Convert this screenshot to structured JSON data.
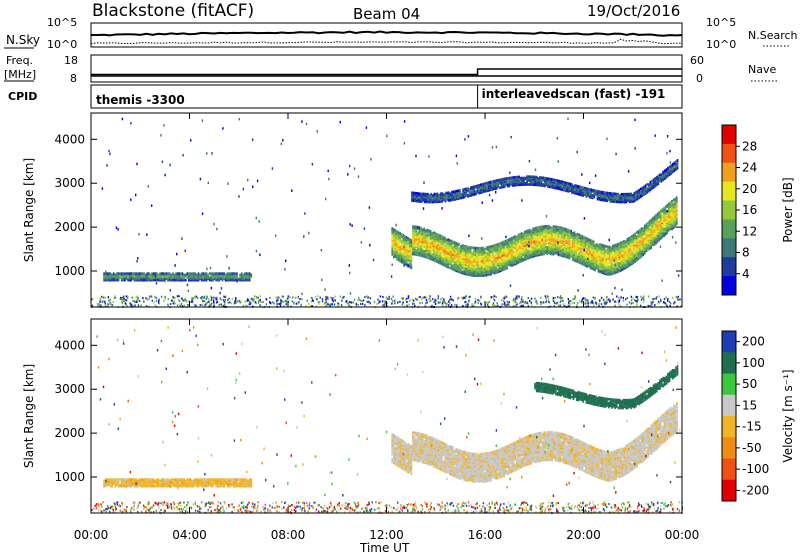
{
  "header": {
    "site": "Blackstone (fitACF)",
    "beam": "Beam 04",
    "date": "19/Oct/2016"
  },
  "summary_panel": {
    "nsky_label": "N.Sky",
    "nsearch_label": "N.Search",
    "freq_label": "Freq.",
    "freq_unit": "[MHz]",
    "nave_label": "Nave",
    "cpid_label": "CPID",
    "nsky_ticks": [
      "10^5",
      "10^0"
    ],
    "nsearch_ticks": [
      "10^5",
      "10^0"
    ],
    "freq_ticks": [
      "18",
      "8"
    ],
    "nave_ticks": [
      "60",
      "0"
    ],
    "cpid_segments": [
      {
        "label": "themis -3300",
        "start_h": 0,
        "end_h": 15.7
      },
      {
        "label": "interleavedscan (fast) -191",
        "start_h": 15.7,
        "end_h": 24
      }
    ],
    "freq_mhz": [
      {
        "start_h": 0,
        "end_h": 15.7,
        "value": 10.0
      },
      {
        "start_h": 15.7,
        "end_h": 24,
        "value": 10.0
      }
    ],
    "nave": [
      {
        "start_h": 0,
        "end_h": 15.7,
        "value": 15
      },
      {
        "start_h": 15.7,
        "end_h": 24,
        "value": 30
      }
    ]
  },
  "time_axis": {
    "label": "Time UT",
    "ticks": [
      "00:00",
      "04:00",
      "08:00",
      "12:00",
      "16:00",
      "20:00",
      "00:00"
    ],
    "tick_hours": [
      0,
      4,
      8,
      12,
      16,
      20,
      24
    ]
  },
  "chart_data": [
    {
      "type": "heatmap",
      "name": "power",
      "ylabel": "Slant Range [km]",
      "yticks": [
        "1000",
        "2000",
        "3000",
        "4000"
      ],
      "ytick_values": [
        1000,
        2000,
        3000,
        4000
      ],
      "ylim": [
        180,
        4600
      ],
      "xlim_hours": [
        0,
        24
      ],
      "colorbar": {
        "label": "Power [dB]",
        "ticks": [
          "4",
          "8",
          "12",
          "16",
          "20",
          "24",
          "28"
        ],
        "colors": [
          "#0000e0",
          "#1e3ca0",
          "#3c7a78",
          "#5aa05a",
          "#96c83c",
          "#e6e61e",
          "#f0a01e",
          "#f05014",
          "#e00000"
        ]
      },
      "features": [
        {
          "desc_id": "early_band",
          "start_h": 0.5,
          "end_h": 6.5,
          "range_km": [
            820,
            1000
          ],
          "level": 3
        },
        {
          "desc_id": "main_band_A",
          "start_h": 12.2,
          "end_h": 15.7,
          "range_km": [
            1050,
            1700
          ],
          "level": 6
        },
        {
          "desc_id": "main_band_B",
          "start_h": 15.7,
          "end_h": 23.8,
          "range_km": [
            1200,
            2100
          ],
          "level": 6
        },
        {
          "desc_id": "upper_band",
          "start_h": 13.0,
          "end_h": 23.8,
          "range_km": [
            2700,
            3300
          ],
          "level": 2
        }
      ]
    },
    {
      "type": "heatmap",
      "name": "velocity",
      "ylabel": "Slant Range [km]",
      "yticks": [
        "1000",
        "2000",
        "3000",
        "4000"
      ],
      "ytick_values": [
        1000,
        2000,
        3000,
        4000
      ],
      "ylim": [
        180,
        4600
      ],
      "xlim_hours": [
        0,
        24
      ],
      "colorbar": {
        "label": "Velocity [m s⁻¹]",
        "ticks": [
          "200",
          "100",
          "50",
          "15",
          "-15",
          "-50",
          "-100",
          "-200"
        ],
        "colors": [
          "#1e3cb4",
          "#1e6e50",
          "#3cc83c",
          "#c8c8c8",
          "#f0b428",
          "#f08c14",
          "#f05014",
          "#e00000"
        ]
      },
      "features": [
        {
          "desc_id": "early_band",
          "start_h": 0.5,
          "end_h": 6.5,
          "range_km": [
            820,
            1000
          ],
          "velocity": -30
        },
        {
          "desc_id": "ground_scatter",
          "start_h": 12.2,
          "end_h": 23.8,
          "range_km": [
            1200,
            2100
          ],
          "velocity": 0
        },
        {
          "desc_id": "upper_band",
          "start_h": 18.0,
          "end_h": 23.8,
          "range_km": [
            2700,
            3300
          ],
          "velocity": 120
        }
      ]
    }
  ]
}
